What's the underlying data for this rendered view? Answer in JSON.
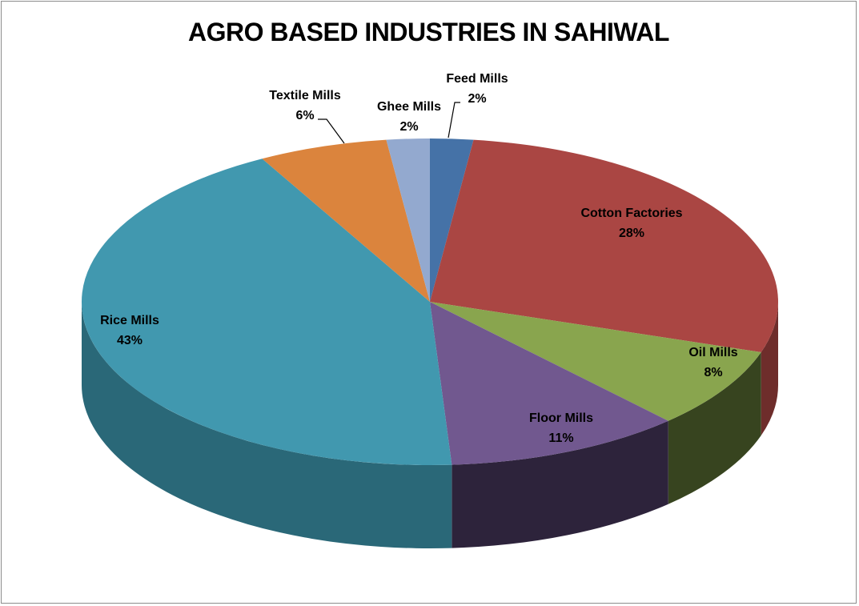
{
  "chart_data": {
    "type": "pie",
    "title": "AGRO BASED INDUSTRIES IN SAHIWAL",
    "start_slice": "Feed Mills",
    "direction": "clockwise",
    "style": "3d",
    "slices": [
      {
        "name": "Feed Mills",
        "percent": 2,
        "label": "2%",
        "color": "#4572a7",
        "side_color": "#2c4a6e"
      },
      {
        "name": "Cotton Factories",
        "percent": 28,
        "label": "28%",
        "color": "#aa4643",
        "side_color": "#6e2d2b"
      },
      {
        "name": "Oil Mills",
        "percent": 8,
        "label": "8%",
        "color": "#89a54e",
        "side_color": "#37441f"
      },
      {
        "name": "Floor Mills",
        "percent": 11,
        "label": "11%",
        "color": "#71588f",
        "side_color": "#2d233b"
      },
      {
        "name": "Rice Mills",
        "percent": 43,
        "label": "43%",
        "color": "#4198af",
        "side_color": "#2a6878"
      },
      {
        "name": "Textile Mills",
        "percent": 6,
        "label": "6%",
        "color": "#db843d",
        "side_color": "#8a5226"
      },
      {
        "name": "Ghee Mills",
        "percent": 2,
        "label": "2%",
        "color": "#93a9cf",
        "side_color": "#5e6d87"
      }
    ]
  }
}
